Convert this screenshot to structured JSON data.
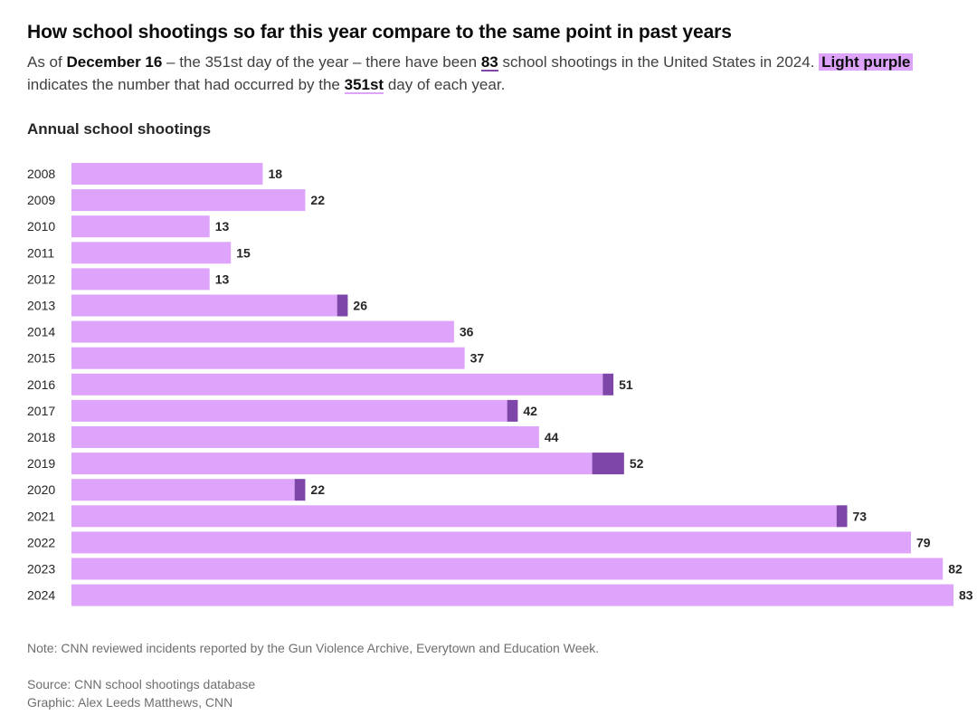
{
  "header": {
    "title": "How school shootings so far this year compare to the same point in past years",
    "subtitle": {
      "p1": "As of ",
      "date": "December 16",
      "p2": " – the 351st day of the year – there have been ",
      "count": "83",
      "p3": " school shootings in the United States in 2024. ",
      "legend_light": "Light purple",
      "p4": " indicates the number that had occurred by the ",
      "day": "351st",
      "p5": " day of each year."
    }
  },
  "chart_label": "Annual school shootings",
  "colors": {
    "light": "#dea4fb",
    "dark": "#7d46a8",
    "label": "#262626"
  },
  "chart_data": {
    "type": "bar",
    "orientation": "horizontal",
    "stacked": true,
    "categories": [
      "2008",
      "2009",
      "2010",
      "2011",
      "2012",
      "2013",
      "2014",
      "2015",
      "2016",
      "2017",
      "2018",
      "2019",
      "2020",
      "2021",
      "2022",
      "2023",
      "2024"
    ],
    "series": [
      {
        "name": "Light purple",
        "values": [
          18,
          22,
          13,
          15,
          13,
          25,
          36,
          37,
          50,
          41,
          44,
          49,
          21,
          72,
          79,
          82,
          83
        ]
      },
      {
        "values": [
          0,
          0,
          0,
          0,
          0,
          1,
          0,
          0,
          1,
          1,
          0,
          3,
          1,
          1,
          0,
          0,
          0
        ]
      }
    ],
    "totals": [
      18,
      22,
      13,
      15,
      13,
      26,
      36,
      37,
      51,
      42,
      44,
      52,
      22,
      73,
      79,
      82,
      83
    ],
    "xlim": [
      0,
      83
    ],
    "grid": false
  },
  "footer": {
    "note": "Note: CNN reviewed incidents reported by the Gun Violence Archive, Everytown and Education Week.",
    "source": "Source: CNN school shootings database",
    "graphic": "Graphic: Alex Leeds Matthews, CNN"
  }
}
